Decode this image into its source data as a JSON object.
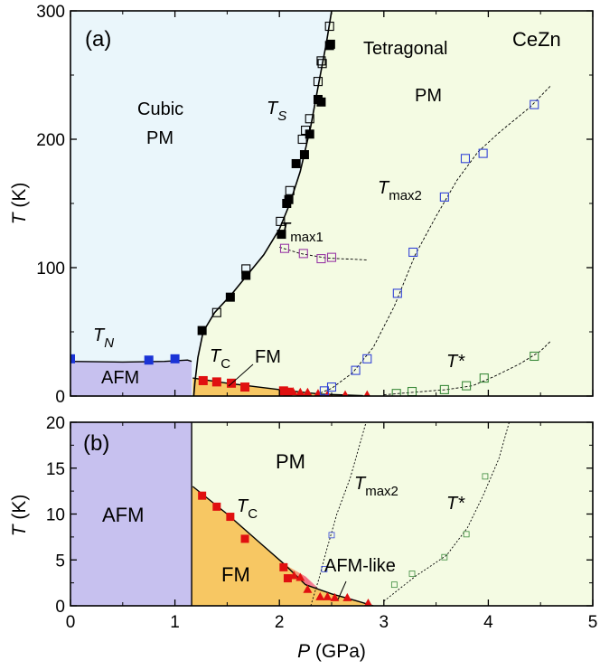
{
  "chart_data": [
    {
      "panel": "(a)",
      "type": "scatter",
      "xlim": [
        0,
        5
      ],
      "ylim": [
        0,
        300
      ],
      "xticks": [
        0,
        1,
        2,
        3,
        4,
        5
      ],
      "yticks": [
        0,
        100,
        200,
        300
      ],
      "ylabel": "T (K)",
      "grid": false,
      "colors": {
        "cubic": "#eaf6fb",
        "tetragonal": "#f4fbe3",
        "afm": "#c7c1ef",
        "fm": "#f7c763",
        "ts": "#000000",
        "tn": "#1a33d6",
        "tc": "#e01010",
        "tmax1": "#9a3aa6",
        "tmax2": "#3344d6",
        "tstar": "#3b8a3b"
      },
      "labels": {
        "panel": "(a)",
        "compound": "CeZn",
        "cubic": "Cubic",
        "cubic_pm": "PM",
        "tetragonal": "Tetragonal",
        "tetra_pm": "PM",
        "afm": "AFM",
        "fm": "FM",
        "ts": [
          "T",
          "S"
        ],
        "tn": [
          "T",
          "N"
        ],
        "tc": [
          "T",
          "C"
        ],
        "tmax1": [
          "T",
          "max1"
        ],
        "tmax2": [
          "T",
          "max2"
        ],
        "tstar": "T*"
      },
      "series": [
        {
          "name": "TS",
          "marker": "filled-square",
          "points": [
            [
              1.26,
              51
            ],
            [
              1.53,
              77
            ],
            [
              1.68,
              94
            ],
            [
              2.02,
              126
            ],
            [
              2.07,
              150
            ],
            [
              2.09,
              153
            ],
            [
              2.16,
              181
            ],
            [
              2.24,
              188
            ],
            [
              2.29,
              204
            ],
            [
              2.37,
              231
            ],
            [
              2.4,
              229
            ],
            [
              2.48,
              273
            ],
            [
              2.49,
              274
            ]
          ]
        },
        {
          "name": "TS (open)",
          "marker": "open-square",
          "points": [
            [
              1.4,
              65
            ],
            [
              1.68,
              99
            ],
            [
              2.01,
              136
            ],
            [
              2.1,
              160
            ],
            [
              2.22,
              200
            ],
            [
              2.25,
              207
            ],
            [
              2.29,
              216
            ],
            [
              2.37,
              245
            ],
            [
              2.4,
              261
            ],
            [
              2.41,
              259
            ],
            [
              2.48,
              288
            ]
          ]
        },
        {
          "name": "TN",
          "marker": "filled-square",
          "points": [
            [
              0.0,
              29
            ],
            [
              0.75,
              28
            ],
            [
              1.0,
              29
            ]
          ]
        },
        {
          "name": "TC",
          "marker": "filled-square",
          "points": [
            [
              1.27,
              12
            ],
            [
              1.4,
              11
            ],
            [
              1.54,
              10
            ],
            [
              1.67,
              7
            ],
            [
              2.04,
              4
            ],
            [
              2.08,
              3
            ]
          ]
        },
        {
          "name": "AFM-like",
          "marker": "filled-triangle",
          "points": [
            [
              2.13,
              3.5
            ],
            [
              2.2,
              3
            ],
            [
              2.27,
              3
            ],
            [
              2.37,
              2
            ],
            [
              2.46,
              1
            ],
            [
              2.63,
              1
            ],
            [
              2.84,
              1
            ]
          ]
        },
        {
          "name": "Tmax1",
          "marker": "open-square",
          "points": [
            [
              2.05,
              115
            ],
            [
              2.23,
              111
            ],
            [
              2.4,
              107
            ],
            [
              2.5,
              108
            ]
          ]
        },
        {
          "name": "Tmax2",
          "marker": "open-square",
          "points": [
            [
              2.43,
              4
            ],
            [
              2.5,
              7
            ],
            [
              2.73,
              20
            ],
            [
              2.84,
              29
            ],
            [
              3.13,
              80
            ],
            [
              3.28,
              112
            ],
            [
              3.58,
              155
            ],
            [
              3.78,
              185
            ],
            [
              3.95,
              189
            ],
            [
              4.44,
              227
            ]
          ]
        },
        {
          "name": "T*",
          "marker": "open-square",
          "points": [
            [
              3.12,
              2
            ],
            [
              3.27,
              3.5
            ],
            [
              3.58,
              5
            ],
            [
              3.79,
              8
            ],
            [
              3.96,
              14
            ],
            [
              4.44,
              31
            ]
          ]
        }
      ]
    },
    {
      "panel": "(b)",
      "type": "scatter",
      "xlim": [
        0,
        5
      ],
      "ylim": [
        0,
        20
      ],
      "xticks": [
        0,
        1,
        2,
        3,
        4,
        5
      ],
      "yticks": [
        0,
        5,
        10,
        15,
        20
      ],
      "xlabel": "P (GPa)",
      "ylabel": "T (K)",
      "grid": false,
      "colors": {
        "afm": "#c7c1ef",
        "fm": "#f7c763",
        "pm": "#f4fbe3",
        "afm_like": "#f08090",
        "tc": "#e01010",
        "tmax2": "#3344d6",
        "tstar": "#3b8a3b"
      },
      "labels": {
        "panel": "(b)",
        "afm": "AFM",
        "fm": "FM",
        "pm": "PM",
        "afm_like": "AFM-like",
        "tc": [
          "T",
          "C"
        ],
        "tmax2": [
          "T",
          "max2"
        ],
        "tstar": "T*"
      },
      "series": [
        {
          "name": "TC",
          "marker": "filled-square",
          "points": [
            [
              1.26,
              12
            ],
            [
              1.4,
              10.8
            ],
            [
              1.53,
              9.7
            ],
            [
              1.67,
              7.3
            ],
            [
              2.04,
              4.2
            ],
            [
              2.08,
              3
            ]
          ]
        },
        {
          "name": "AFM-like",
          "marker": "filled-triangle",
          "points": [
            [
              2.14,
              3.3
            ],
            [
              2.2,
              3.1
            ],
            [
              2.27,
              1.8
            ],
            [
              2.39,
              1
            ],
            [
              2.46,
              1
            ],
            [
              2.53,
              0.9
            ],
            [
              2.65,
              0.9
            ],
            [
              2.85,
              0.3
            ]
          ]
        },
        {
          "name": "Tmax2",
          "marker": "open-square",
          "points": [
            [
              2.43,
              4
            ],
            [
              2.5,
              7.7
            ]
          ]
        },
        {
          "name": "T*",
          "marker": "open-square",
          "points": [
            [
              3.1,
              2.3
            ],
            [
              3.27,
              3.5
            ],
            [
              3.58,
              5.3
            ],
            [
              3.79,
              7.8
            ],
            [
              3.97,
              14.1
            ]
          ]
        }
      ]
    }
  ]
}
